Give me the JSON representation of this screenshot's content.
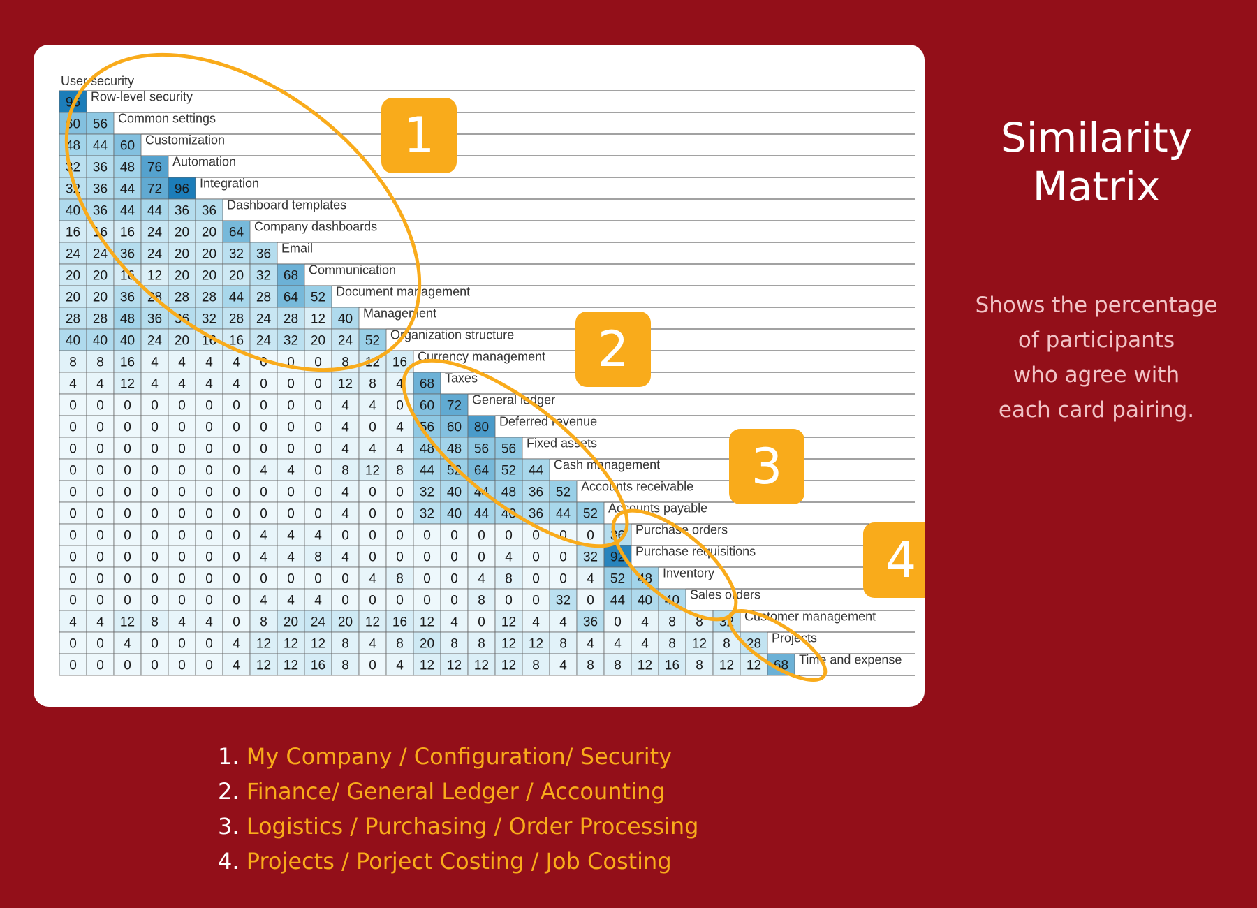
{
  "page": {
    "title_lines": [
      "Similarity",
      "Matrix"
    ],
    "subtitle_lines": [
      "Shows the percentage",
      "of participants",
      "who agree with",
      "each card pairing."
    ]
  },
  "colors": {
    "background": "#930f19",
    "accent": "#f9ab1b",
    "card": "#ffffff"
  },
  "chart_data": {
    "type": "heatmap",
    "first_label": "User security",
    "labels": [
      "User security",
      "Row-level security",
      "Common settings",
      "Customization",
      "Automation",
      "Integration",
      "Dashboard templates",
      "Company dashboards",
      "Email",
      "Communication",
      "Document management",
      "Management",
      "Organization structure",
      "Currency management",
      "Taxes",
      "General ledger",
      "Deferred revenue",
      "Fixed assets",
      "Cash management",
      "Accounts receivable",
      "Accounts payable",
      "Purchase orders",
      "Purchase requisitions",
      "Inventory",
      "Sales orders",
      "Customer management",
      "Projects",
      "Time and expense"
    ],
    "rows": [
      {
        "label": "Row-level security",
        "values": [
          96
        ]
      },
      {
        "label": "Common settings",
        "values": [
          60,
          56
        ]
      },
      {
        "label": "Customization",
        "values": [
          48,
          44,
          60
        ]
      },
      {
        "label": "Automation",
        "values": [
          32,
          36,
          48,
          76
        ]
      },
      {
        "label": "Integration",
        "values": [
          32,
          36,
          44,
          72,
          96
        ]
      },
      {
        "label": "Dashboard templates",
        "values": [
          40,
          36,
          44,
          44,
          36,
          36
        ]
      },
      {
        "label": "Company dashboards",
        "values": [
          16,
          16,
          16,
          24,
          20,
          20,
          64
        ]
      },
      {
        "label": "Email",
        "values": [
          24,
          24,
          36,
          24,
          20,
          20,
          32,
          36
        ]
      },
      {
        "label": "Communication",
        "values": [
          20,
          20,
          16,
          12,
          20,
          20,
          20,
          32,
          68
        ]
      },
      {
        "label": "Document management",
        "values": [
          20,
          20,
          36,
          28,
          28,
          28,
          44,
          28,
          64,
          52
        ]
      },
      {
        "label": "Management",
        "values": [
          28,
          28,
          48,
          36,
          36,
          32,
          28,
          24,
          28,
          12,
          40
        ]
      },
      {
        "label": "Organization structure",
        "values": [
          40,
          40,
          40,
          24,
          20,
          16,
          16,
          24,
          32,
          20,
          24,
          52
        ]
      },
      {
        "label": "Currency management",
        "values": [
          8,
          8,
          16,
          4,
          4,
          4,
          4,
          0,
          0,
          0,
          8,
          12,
          16
        ]
      },
      {
        "label": "Taxes",
        "values": [
          4,
          4,
          12,
          4,
          4,
          4,
          4,
          0,
          0,
          0,
          12,
          8,
          4,
          68
        ]
      },
      {
        "label": "General ledger",
        "values": [
          0,
          0,
          0,
          0,
          0,
          0,
          0,
          0,
          0,
          0,
          4,
          4,
          0,
          60,
          72
        ]
      },
      {
        "label": "Deferred revenue",
        "values": [
          0,
          0,
          0,
          0,
          0,
          0,
          0,
          0,
          0,
          0,
          4,
          0,
          4,
          56,
          60,
          80
        ]
      },
      {
        "label": "Fixed assets",
        "values": [
          0,
          0,
          0,
          0,
          0,
          0,
          0,
          0,
          0,
          0,
          4,
          4,
          4,
          48,
          48,
          56,
          56
        ]
      },
      {
        "label": "Cash management",
        "values": [
          0,
          0,
          0,
          0,
          0,
          0,
          0,
          4,
          4,
          0,
          8,
          12,
          8,
          44,
          52,
          64,
          52,
          44
        ]
      },
      {
        "label": "Accounts receivable",
        "values": [
          0,
          0,
          0,
          0,
          0,
          0,
          0,
          0,
          0,
          0,
          4,
          0,
          0,
          32,
          40,
          44,
          48,
          36,
          52
        ]
      },
      {
        "label": "Accounts payable",
        "values": [
          0,
          0,
          0,
          0,
          0,
          0,
          0,
          0,
          0,
          0,
          4,
          0,
          0,
          32,
          40,
          44,
          40,
          36,
          44,
          52
        ]
      },
      {
        "label": "Purchase orders",
        "values": [
          0,
          0,
          0,
          0,
          0,
          0,
          0,
          4,
          4,
          4,
          0,
          0,
          0,
          0,
          0,
          0,
          0,
          0,
          0,
          0,
          36
        ]
      },
      {
        "label": "Purchase requisitions",
        "values": [
          0,
          0,
          0,
          0,
          0,
          0,
          0,
          4,
          4,
          8,
          4,
          0,
          0,
          0,
          0,
          0,
          4,
          0,
          0,
          32,
          92
        ]
      },
      {
        "label": "Inventory",
        "values": [
          0,
          0,
          0,
          0,
          0,
          0,
          0,
          0,
          0,
          0,
          0,
          4,
          8,
          0,
          0,
          4,
          8,
          0,
          0,
          4,
          52,
          48
        ]
      },
      {
        "label": "Sales orders",
        "values": [
          0,
          0,
          0,
          0,
          0,
          0,
          0,
          4,
          4,
          4,
          0,
          0,
          0,
          0,
          0,
          8,
          0,
          0,
          32,
          0,
          44,
          40,
          40
        ]
      },
      {
        "label": "Customer management",
        "values": [
          4,
          4,
          12,
          8,
          4,
          4,
          0,
          8,
          20,
          24,
          20,
          12,
          16,
          12,
          4,
          0,
          12,
          4,
          4,
          36,
          0,
          4,
          8,
          8,
          32
        ]
      },
      {
        "label": "Projects",
        "values": [
          0,
          0,
          4,
          0,
          0,
          0,
          4,
          12,
          12,
          12,
          8,
          4,
          8,
          20,
          8,
          8,
          12,
          12,
          8,
          4,
          4,
          4,
          8,
          12,
          8,
          28
        ]
      },
      {
        "label": "Time and expense",
        "values": [
          0,
          0,
          0,
          0,
          0,
          0,
          4,
          12,
          12,
          16,
          8,
          0,
          4,
          12,
          12,
          12,
          12,
          8,
          4,
          8,
          8,
          12,
          16,
          8,
          12,
          12,
          68
        ]
      }
    ],
    "color_scale": {
      "min": 0,
      "max": 100,
      "low": "#eef8fc",
      "mid": "#9fd3e9",
      "high": "#1175b5"
    },
    "grid": true,
    "annotations": [
      {
        "label": "1",
        "group": "My Company / Configuration/ Security"
      },
      {
        "label": "2",
        "group": "Finance/ General Ledger / Accounting"
      },
      {
        "label": "3",
        "group": "Logistics / Purchasing / Order Processing"
      },
      {
        "label": "4",
        "group": "Projects / Porject Costing / Job Costing"
      }
    ]
  },
  "legend": [
    {
      "number": "1.",
      "text": "My Company / Configuration/ Security"
    },
    {
      "number": "2.",
      "text": "Finance/ General Ledger / Accounting"
    },
    {
      "number": "3.",
      "text": "Logistics / Purchasing / Order Processing"
    },
    {
      "number": "4.",
      "text": "Projects / Porject Costing / Job Costing"
    }
  ]
}
